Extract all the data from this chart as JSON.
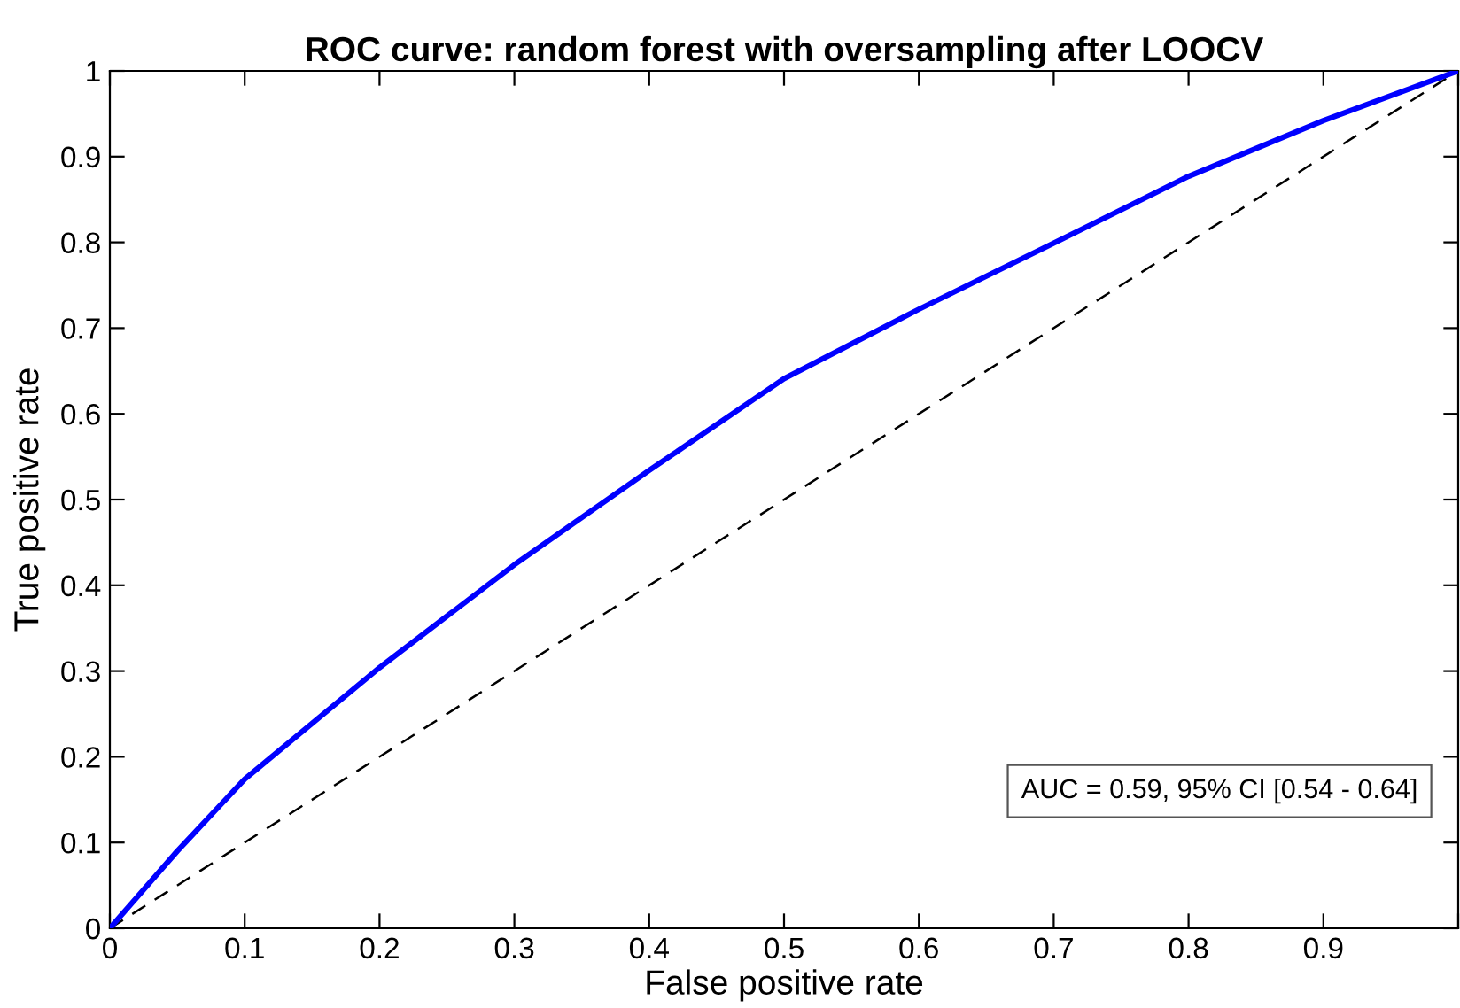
{
  "chart_data": {
    "type": "line",
    "title": "ROC curve: random forest with oversampling after LOOCV",
    "xlabel": "False positive rate",
    "ylabel": "True positive rate",
    "xlim": [
      0,
      1
    ],
    "ylim": [
      0,
      1
    ],
    "xticks": [
      0,
      0.1,
      0.2,
      0.3,
      0.4,
      0.5,
      0.6,
      0.7,
      0.8,
      0.9,
      {
        "value": 1,
        "label": null
      }
    ],
    "yticks": [
      0,
      0.1,
      0.2,
      0.3,
      0.4,
      0.5,
      0.6,
      0.7,
      0.8,
      0.9,
      1
    ],
    "grid": false,
    "legend": false,
    "series": [
      {
        "color": "#0000ff",
        "line_style": "solid",
        "x": [
          0,
          0.05,
          0.1,
          0.2,
          0.3,
          0.4,
          0.5,
          0.6,
          0.7,
          0.8,
          0.9,
          1
        ],
        "values": [
          0,
          0.09,
          0.174,
          0.304,
          0.424,
          0.534,
          0.641,
          0.722,
          0.799,
          0.877,
          0.942,
          1
        ]
      },
      {
        "color": "#000000",
        "line_style": "dashed",
        "x": [
          0,
          1
        ],
        "values": [
          0,
          1
        ]
      }
    ],
    "annotations": [
      "AUC = 0.59, 95% CI [0.54 - 0.64]"
    ]
  }
}
